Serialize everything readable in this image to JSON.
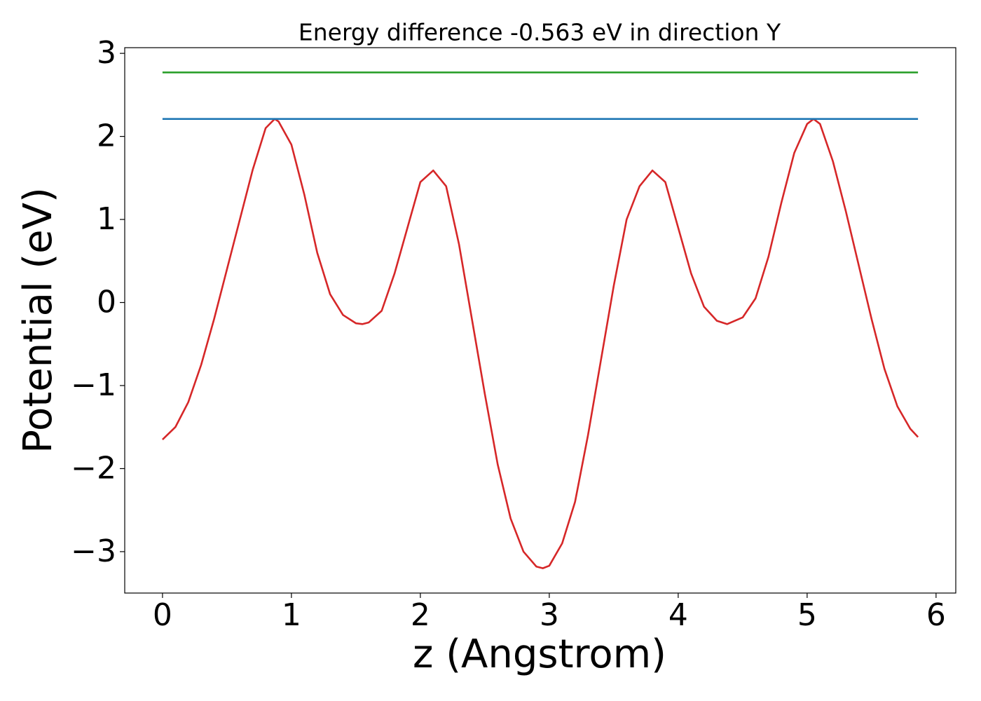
{
  "chart_data": {
    "type": "line",
    "title": "Energy difference -0.563 eV in direction Y",
    "xlabel": "z (Angstrom)",
    "ylabel": "Potential (eV)",
    "xlim": [
      -0.293,
      6.153
    ],
    "ylim": [
      -3.4985,
      3.0685
    ],
    "xticks": [
      0,
      1,
      2,
      3,
      4,
      5,
      6
    ],
    "yticks": [
      {
        "value": -3,
        "label": "−3"
      },
      {
        "value": -2,
        "label": "−2"
      },
      {
        "value": -1,
        "label": "−1"
      },
      0,
      1,
      2,
      3
    ],
    "series": [
      {
        "color": "#d62728",
        "x": [
          0,
          0.1,
          0.2,
          0.3,
          0.4,
          0.5,
          0.6,
          0.7,
          0.8,
          0.87,
          0.9,
          1.0,
          1.1,
          1.2,
          1.3,
          1.4,
          1.5,
          1.55,
          1.6,
          1.7,
          1.8,
          1.9,
          2.0,
          2.1,
          2.2,
          2.3,
          2.4,
          2.5,
          2.6,
          2.7,
          2.8,
          2.9,
          2.95,
          3.0,
          3.1,
          3.2,
          3.3,
          3.4,
          3.5,
          3.6,
          3.7,
          3.8,
          3.9,
          4.0,
          4.1,
          4.2,
          4.3,
          4.38,
          4.5,
          4.6,
          4.7,
          4.8,
          4.9,
          5.0,
          5.05,
          5.1,
          5.2,
          5.3,
          5.4,
          5.5,
          5.6,
          5.7,
          5.8,
          5.86
        ],
        "values": [
          -1.65,
          -1.5,
          -1.2,
          -0.75,
          -0.2,
          0.4,
          1.0,
          1.6,
          2.1,
          2.21,
          2.18,
          1.9,
          1.3,
          0.6,
          0.1,
          -0.15,
          -0.25,
          -0.26,
          -0.24,
          -0.1,
          0.35,
          0.9,
          1.45,
          1.59,
          1.4,
          0.7,
          -0.2,
          -1.1,
          -1.95,
          -2.6,
          -3.0,
          -3.18,
          -3.2,
          -3.17,
          -2.9,
          -2.4,
          -1.6,
          -0.7,
          0.2,
          1.0,
          1.4,
          1.59,
          1.45,
          0.9,
          0.35,
          -0.05,
          -0.22,
          -0.26,
          -0.18,
          0.05,
          0.55,
          1.2,
          1.8,
          2.15,
          2.21,
          2.15,
          1.7,
          1.1,
          0.45,
          -0.2,
          -0.8,
          -1.25,
          -1.52,
          -1.62
        ]
      },
      {
        "color": "#1f77b4",
        "x": [
          0,
          5.86
        ],
        "values": [
          2.21,
          2.21
        ]
      },
      {
        "color": "#2ca02c",
        "x": [
          0,
          5.86
        ],
        "values": [
          2.77,
          2.77
        ]
      }
    ]
  }
}
